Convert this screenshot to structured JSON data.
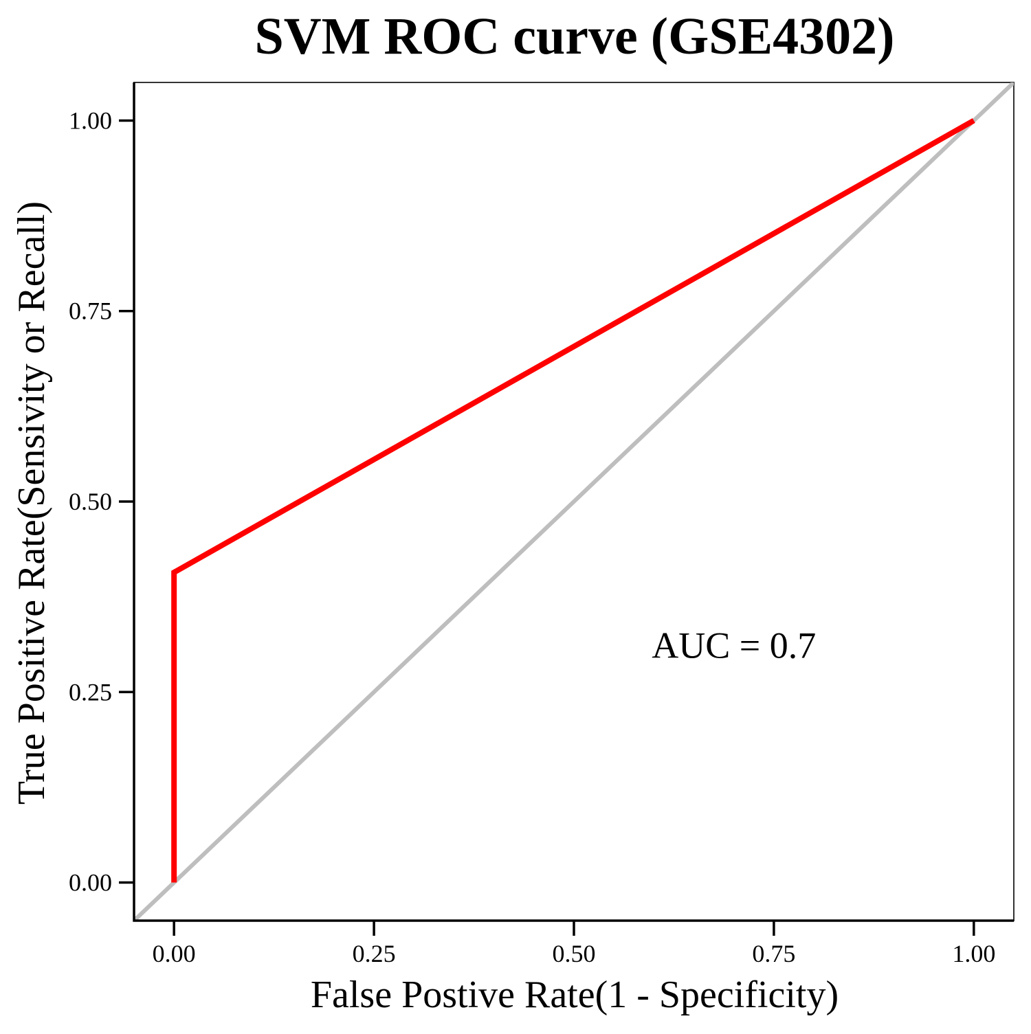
{
  "chart_data": {
    "type": "line",
    "title": "SVM ROC curve (GSE4302)",
    "xlabel": "False Postive Rate(1 - Specificity)",
    "ylabel": "True Positive Rate(Sensivity or Recall)",
    "xlim": [
      -0.05,
      1.05
    ],
    "ylim": [
      -0.05,
      1.05
    ],
    "x_ticks": [
      0,
      0.25,
      0.5,
      0.75,
      1
    ],
    "x_tick_labels": [
      "0.00",
      "0.25",
      "0.50",
      "0.75",
      "1.00"
    ],
    "y_ticks": [
      0,
      0.25,
      0.5,
      0.75,
      1
    ],
    "y_tick_labels": [
      "0.00",
      "0.25",
      "0.50",
      "0.75",
      "1.00"
    ],
    "grid": false,
    "series": [
      {
        "color": "#ff0000",
        "points": [
          [
            0,
            0
          ],
          [
            0,
            0.407
          ],
          [
            1,
            1
          ]
        ]
      }
    ],
    "reference_line": {
      "color": "#bebebe",
      "points": [
        [
          -0.05,
          -0.05
        ],
        [
          1.05,
          1.05
        ]
      ]
    },
    "annotations": [
      {
        "text": "AUC = 0.7",
        "x": 0.7,
        "y": 0.295
      }
    ]
  }
}
